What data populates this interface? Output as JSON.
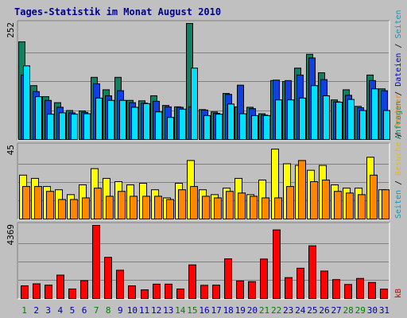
{
  "colors": {
    "background": "#c0c0c0",
    "panel": "#c0c0c0",
    "gridline": "#808080",
    "frame_dark": "#808080",
    "frame_light": "#ffffff",
    "title": "#00008b",
    "label_green": "#008060",
    "label_blue": "#0000cc",
    "label_cyan": "#00a0c0",
    "label_yellow": "#e0c000",
    "label_orange": "#ff8000",
    "label_red": "#cc0000",
    "weekday": "#0000aa",
    "weekend": "#008000",
    "hits": "#108060",
    "files": "#1040e0",
    "pages": "#00e0ff",
    "visits": "#ffff00",
    "sites": "#ff8800",
    "kb": "#ff0000"
  },
  "chart_data": {
    "type": "bar",
    "title": "Tages-Statistik im Monat August 2010",
    "categories": [
      "1",
      "2",
      "3",
      "4",
      "5",
      "6",
      "7",
      "8",
      "9",
      "10",
      "11",
      "12",
      "13",
      "14",
      "15",
      "16",
      "17",
      "18",
      "19",
      "20",
      "21",
      "22",
      "23",
      "24",
      "25",
      "26",
      "27",
      "28",
      "29",
      "30",
      "31"
    ],
    "weekend_days": [
      "1",
      "7",
      "8",
      "14",
      "15",
      "21",
      "22",
      "28",
      "29"
    ],
    "panels": [
      {
        "id": "top",
        "ylim": [
          0,
          252
        ],
        "max_label": "252",
        "right_label": {
          "parts": [
            {
              "text": "Anfragen",
              "color": "#008060"
            },
            {
              "text": " / ",
              "color": "#000000"
            },
            {
              "text": "Dateien",
              "color": "#0000cc"
            },
            {
              "text": " / ",
              "color": "#000000"
            },
            {
              "text": "Seiten",
              "color": "#00a0c0"
            }
          ]
        },
        "series": [
          {
            "name": "Anfragen",
            "color": "#108060",
            "values": [
              212,
              117,
              93,
              80,
              63,
              62,
              135,
              108,
              135,
              85,
              84,
              95,
              74,
              71,
              252,
              65,
              60,
              100,
              71,
              70,
              56,
              128,
              126,
              155,
              185,
              145,
              86,
              108,
              72,
              140,
              110
            ]
          },
          {
            "name": "Dateien",
            "color": "#1040e0",
            "values": [
              140,
              104,
              85,
              70,
              58,
              59,
              121,
              95,
              106,
              80,
              79,
              83,
              71,
              70,
              71,
              64,
              57,
              98,
              118,
              67,
              53,
              129,
              128,
              140,
              177,
              130,
              82,
              96,
              69,
              128,
              106
            ]
          },
          {
            "name": "Seiten",
            "color": "#00e0ff",
            "values": [
              160,
              93,
              55,
              58,
              55,
              56,
              90,
              85,
              85,
              70,
              78,
              60,
              48,
              66,
              155,
              52,
              55,
              77,
              56,
              52,
              52,
              86,
              86,
              90,
              117,
              95,
              81,
              87,
              63,
              110,
              63
            ]
          }
        ]
      },
      {
        "id": "middle",
        "ylim": [
          0,
          45
        ],
        "max_label": "45",
        "right_label": {
          "parts": [
            {
              "text": "Seiten",
              "color": "#00a0c0"
            },
            {
              "text": " / ",
              "color": "#000000"
            },
            {
              "text": "Besuche",
              "color": "#e0c000"
            },
            {
              "text": " / ",
              "color": "#000000"
            },
            {
              "text": "Rechner",
              "color": "#ff8000"
            }
          ]
        },
        "series": [
          {
            "name": "Besuche",
            "color": "#ffff00",
            "values": [
              27,
              25,
              20,
              18,
              15,
              21,
              31,
              25,
              23,
              21,
              22,
              18,
              13,
              22,
              36,
              18,
              15,
              19,
              25,
              15,
              24,
              43,
              34,
              33,
              30,
              33,
              21,
              19,
              19,
              38,
              18
            ]
          },
          {
            "name": "Rechner",
            "color": "#ff8800",
            "values": [
              20,
              20,
              17,
              12,
              12,
              13,
              19,
              14,
              17,
              14,
              14,
              14,
              12,
              18,
              20,
              14,
              13,
              17,
              16,
              14,
              13,
              13,
              20,
              36,
              23,
              24,
              17,
              16,
              15,
              27,
              18
            ]
          }
        ]
      },
      {
        "id": "bottom",
        "ylim": [
          0,
          4369
        ],
        "max_label": "4369",
        "right_label": {
          "parts": [
            {
              "text": "kB",
              "color": "#cc0000"
            }
          ]
        },
        "series": [
          {
            "name": "kB",
            "color": "#ff0000",
            "values": [
              760,
              880,
              800,
              1400,
              570,
              1070,
              4369,
              2460,
              1690,
              760,
              520,
              860,
              860,
              570,
              2010,
              790,
              800,
              2370,
              1050,
              1010,
              2360,
              4100,
              1250,
              1810,
              3150,
              1640,
              1130,
              840,
              1200,
              960,
              560
            ]
          }
        ]
      }
    ]
  }
}
